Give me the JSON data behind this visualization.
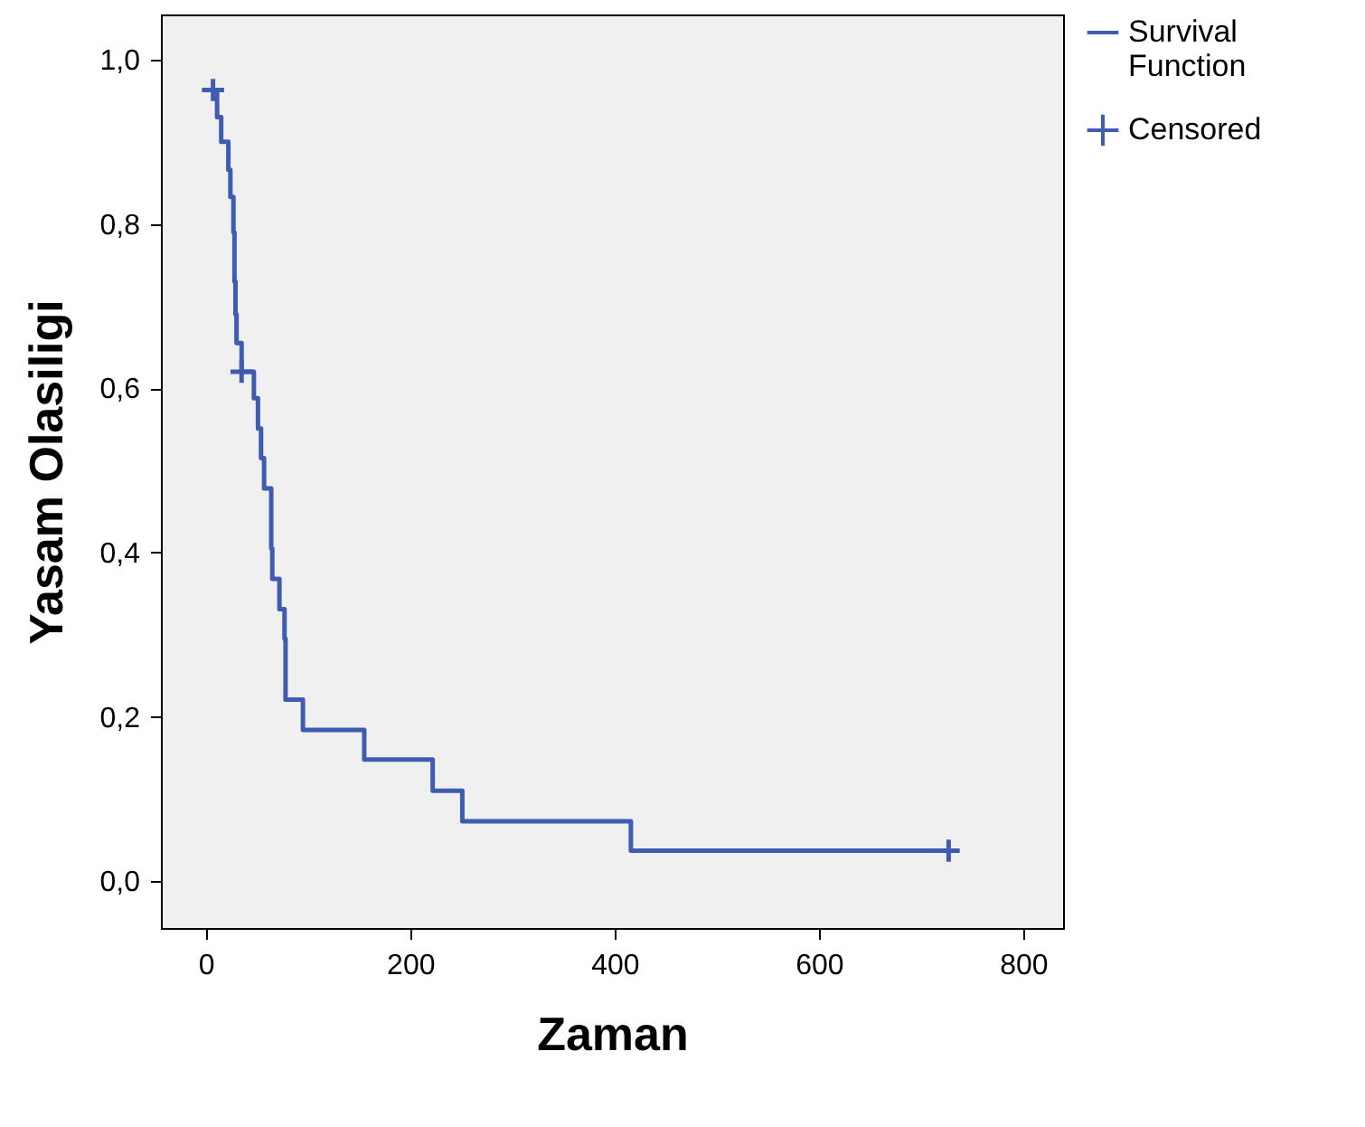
{
  "chart_data": {
    "type": "step",
    "xlabel": "Zaman",
    "ylabel": "Yasam Olasiligi",
    "xlim": [
      -44,
      839
    ],
    "xticks": [
      0,
      200,
      400,
      600,
      800
    ],
    "ylim": [
      -0.057,
      1.055
    ],
    "yticks": [
      {
        "value": 0,
        "label": "0,0"
      },
      {
        "value": 0.2,
        "label": "0,2"
      },
      {
        "value": 0.4,
        "label": "0,4"
      },
      {
        "value": 0.6,
        "label": "0,6"
      },
      {
        "value": 0.8,
        "label": "0,8"
      },
      {
        "value": 1,
        "label": "1,0"
      }
    ],
    "grid": false,
    "legend": "top right",
    "line_style": "solid",
    "series": [
      {
        "name": "Survival Function",
        "type": "step",
        "color": "#3f5cb0",
        "x": [
          7,
          11,
          15,
          22,
          24,
          27,
          28,
          29,
          30,
          35,
          47,
          51,
          54,
          57,
          64,
          65,
          72,
          77,
          78,
          95,
          155,
          222,
          251,
          416,
          727
        ],
        "values": [
          0.963,
          0.93,
          0.9,
          0.866,
          0.833,
          0.79,
          0.73,
          0.69,
          0.655,
          0.62,
          0.588,
          0.551,
          0.515,
          0.478,
          0.405,
          0.368,
          0.331,
          0.295,
          0.221,
          0.184,
          0.148,
          0.11,
          0.073,
          0.037,
          0.037
        ]
      },
      {
        "name": "Censored",
        "type": "scatter",
        "marker": "cross",
        "color": "#3f5cb0",
        "x": [
          7,
          35,
          727
        ],
        "values": [
          0.963,
          0.62,
          0.037
        ]
      }
    ]
  }
}
